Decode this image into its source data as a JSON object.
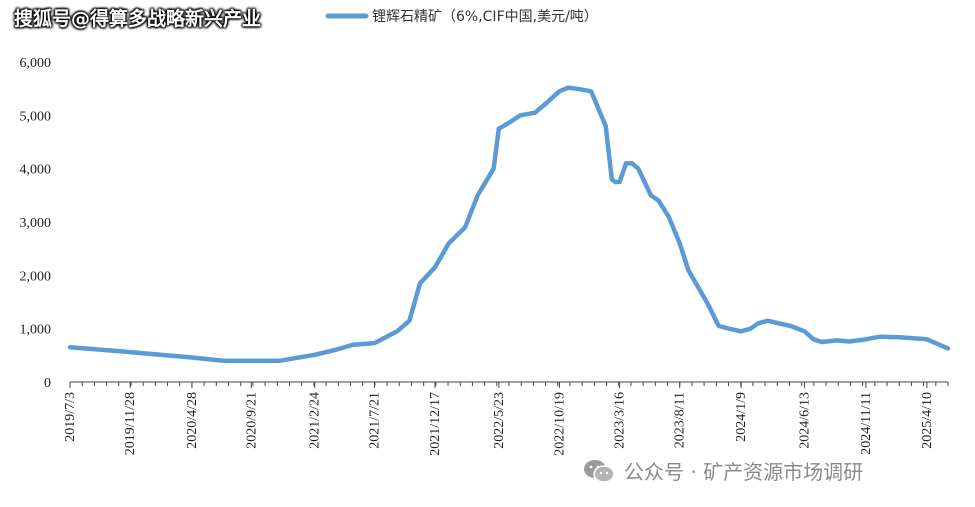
{
  "watermark_top": "搜狐号@得算多战略新兴产业",
  "watermark_bottom": "公众号 · 矿产资源市场调研",
  "colors": {
    "line": "#5b9bd5",
    "axis": "#444444"
  },
  "chart_data": {
    "type": "line",
    "title": "",
    "xlabel": "",
    "ylabel": "",
    "ylim": [
      0,
      6000
    ],
    "yticks": [
      0,
      1000,
      2000,
      3000,
      4000,
      5000,
      6000
    ],
    "ytick_labels": [
      "0",
      "1,000",
      "2,000",
      "3,000",
      "4,000",
      "5,000",
      "6,000"
    ],
    "xtick_labels": [
      "2019/7/3",
      "2019/11/28",
      "2020/4/28",
      "2020/9/21",
      "2021/2/24",
      "2021/7/21",
      "2021/12/17",
      "2022/5/23",
      "2022/10/19",
      "2023/3/16",
      "2023/8/11",
      "2024/1/9",
      "2024/6/13",
      "2024/11/11",
      "2025/4/10"
    ],
    "legend_position": "top",
    "series": [
      {
        "name": "锂辉石精矿（6%,CIF中国,美元/吨）",
        "x": [
          "2019/7/3",
          "2019/11/28",
          "2020/4/28",
          "2020/7/15",
          "2020/9/21",
          "2020/12/1",
          "2021/2/24",
          "2021/4/15",
          "2021/5/30",
          "2021/7/21",
          "2021/9/15",
          "2021/10/15",
          "2021/11/10",
          "2021/12/17",
          "2022/1/20",
          "2022/3/1",
          "2022/4/1",
          "2022/5/10",
          "2022/5/23",
          "2022/6/15",
          "2022/7/15",
          "2022/8/20",
          "2022/9/20",
          "2022/10/19",
          "2022/11/10",
          "2022/12/1",
          "2023/1/5",
          "2023/2/10",
          "2023/2/25",
          "2023/3/5",
          "2023/3/16",
          "2023/4/1",
          "2023/4/15",
          "2023/5/1",
          "2023/6/1",
          "2023/6/20",
          "2023/7/15",
          "2023/8/11",
          "2023/9/1",
          "2023/10/1",
          "2023/10/20",
          "2023/11/15",
          "2023/12/10",
          "2024/1/9",
          "2024/2/1",
          "2024/2/20",
          "2024/3/15",
          "2024/4/10",
          "2024/5/10",
          "2024/6/13",
          "2024/7/5",
          "2024/7/25",
          "2024/9/1",
          "2024/10/1",
          "2024/11/11",
          "2024/12/15",
          "2025/2/1",
          "2025/4/10",
          "2025/5/10",
          "2025/6/1"
        ],
        "values": [
          650,
          560,
          460,
          400,
          400,
          400,
          510,
          600,
          700,
          730,
          950,
          1150,
          1850,
          2150,
          2600,
          2900,
          3500,
          4000,
          4750,
          4850,
          5000,
          5050,
          5250,
          5450,
          5520,
          5500,
          5450,
          4800,
          3800,
          3750,
          3750,
          4100,
          4100,
          4000,
          3500,
          3400,
          3100,
          2600,
          2100,
          1700,
          1450,
          1050,
          1000,
          950,
          1000,
          1100,
          1150,
          1100,
          1050,
          950,
          800,
          750,
          780,
          760,
          800,
          850,
          840,
          800,
          700,
          630
        ]
      }
    ]
  }
}
